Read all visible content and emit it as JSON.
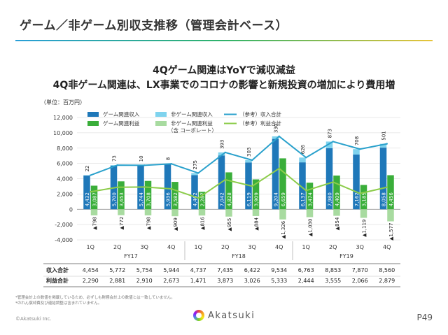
{
  "page": {
    "title": "ゲーム／非ゲーム別収支推移（管理会計ベース）",
    "headline1": "4Qゲーム関連はYoYで減収減益",
    "headline2": "4Q非ゲーム関連は、LX事業でのコロナの影響と新規投資の増加により費用増",
    "unit": "（単位：百万円）",
    "footnote1": "*管理会計上の数値を掲載しているため、必ずしも財務会計上の数値とは一致していません。",
    "footnote2": "*のれん償却費及び連結調整は含まれていません。",
    "copyright": "©Akatsuki Inc.",
    "logo_text": "Akatsuki",
    "page_number": "P49"
  },
  "colors": {
    "game_revenue": "#1f78b9",
    "nongame_revenue": "#7fd3ee",
    "game_profit": "#3aae3a",
    "nongame_profit": "#a8dba0",
    "total_revenue_line": "#2aa1cc",
    "total_profit_line": "#8ccc4a"
  },
  "chart_data": {
    "type": "bar",
    "categories": [
      "1Q",
      "2Q",
      "3Q",
      "4Q",
      "1Q",
      "2Q",
      "3Q",
      "4Q",
      "1Q",
      "2Q",
      "3Q",
      "4Q"
    ],
    "fiscal_years": [
      {
        "label": "FY17",
        "quarters": 4
      },
      {
        "label": "FY18",
        "quarters": 4
      },
      {
        "label": "FY19",
        "quarters": 4
      }
    ],
    "ylim": [
      -4000,
      12000
    ],
    "yticks": [
      -4000,
      -2000,
      0,
      2000,
      4000,
      6000,
      8000,
      10000,
      12000
    ],
    "ytick_labels": [
      "-4,000",
      "-2,000",
      "0",
      "2,000",
      "4,000",
      "6,000",
      "8,000",
      "10,000",
      "12,000"
    ],
    "legend": [
      {
        "key": "game_revenue",
        "label": "ゲーム関連収入",
        "kind": "bar"
      },
      {
        "key": "nongame_revenue",
        "label": "非ゲーム関連収入",
        "kind": "bar"
      },
      {
        "key": "total_revenue",
        "label": "（参考）収入合計",
        "kind": "line"
      },
      {
        "key": "game_profit",
        "label": "ゲーム関連利益",
        "kind": "bar"
      },
      {
        "key": "nongame_profit",
        "label": "非ゲーム関連利益",
        "label2": "（含 コーポレート）",
        "kind": "bar"
      },
      {
        "key": "total_profit",
        "label": "（参考）利益合計",
        "kind": "line"
      }
    ],
    "series": [
      {
        "name": "ゲーム関連収入",
        "key": "game_revenue",
        "values": [
          4432,
          5700,
          5744,
          5936,
          4462,
          7042,
          6119,
          9204,
          6137,
          7980,
          7162,
          8058
        ],
        "labels": [
          "4,432",
          "5,700",
          "5,744",
          "5,936",
          "4,462",
          "7,042",
          "6,119",
          "9,204",
          "6,137",
          "7,980",
          "7,162",
          "8,058"
        ]
      },
      {
        "name": "非ゲーム関連収入",
        "key": "nongame_revenue",
        "values": [
          22,
          73,
          10,
          8,
          275,
          393,
          303,
          330,
          626,
          873,
          708,
          501
        ],
        "labels": [
          "22",
          "73",
          "10",
          "8",
          "275",
          "393",
          "303",
          "330",
          "626",
          "873",
          "708",
          "501"
        ]
      },
      {
        "name": "ゲーム関連利益",
        "key": "game_profit",
        "values": [
          3087,
          3653,
          3708,
          3582,
          2287,
          4828,
          3909,
          6659,
          3474,
          4409,
          3185,
          4456
        ],
        "labels": [
          "3,087",
          "3,653",
          "3,708",
          "3,582",
          "2,287",
          "4,828",
          "3,909",
          "6,659",
          "3,474",
          "4,409",
          "3,185",
          "4,456"
        ]
      },
      {
        "name": "非ゲーム関連利益",
        "key": "nongame_profit",
        "values": [
          -798,
          -772,
          -798,
          -909,
          -816,
          -955,
          -884,
          -1326,
          -1030,
          -854,
          -1119,
          -1577
        ],
        "labels": [
          "▲798",
          "▲772",
          "▲798",
          "▲909",
          "▲816",
          "▲955",
          "▲884",
          "▲1,326",
          "▲1,030",
          "▲854",
          "▲1,119",
          "▲1,577"
        ]
      },
      {
        "name": "（参考）収入合計",
        "key": "total_revenue",
        "values": [
          4454,
          5772,
          5754,
          5944,
          4737,
          7435,
          6422,
          9534,
          6763,
          8853,
          7870,
          8560
        ]
      },
      {
        "name": "（参考）利益合計",
        "key": "total_profit",
        "values": [
          2290,
          2881,
          2910,
          2673,
          1471,
          3873,
          3026,
          5333,
          2444,
          3555,
          2066,
          2879
        ]
      }
    ],
    "table": [
      {
        "label": "収入合計",
        "values": [
          "4,454",
          "5,772",
          "5,754",
          "5,944",
          "4,737",
          "7,435",
          "6,422",
          "9,534",
          "6,763",
          "8,853",
          "7,870",
          "8,560"
        ]
      },
      {
        "label": "利益合計",
        "values": [
          "2,290",
          "2,881",
          "2,910",
          "2,673",
          "1,471",
          "3,873",
          "3,026",
          "5,333",
          "2,444",
          "3,555",
          "2,066",
          "2,879"
        ]
      }
    ]
  }
}
